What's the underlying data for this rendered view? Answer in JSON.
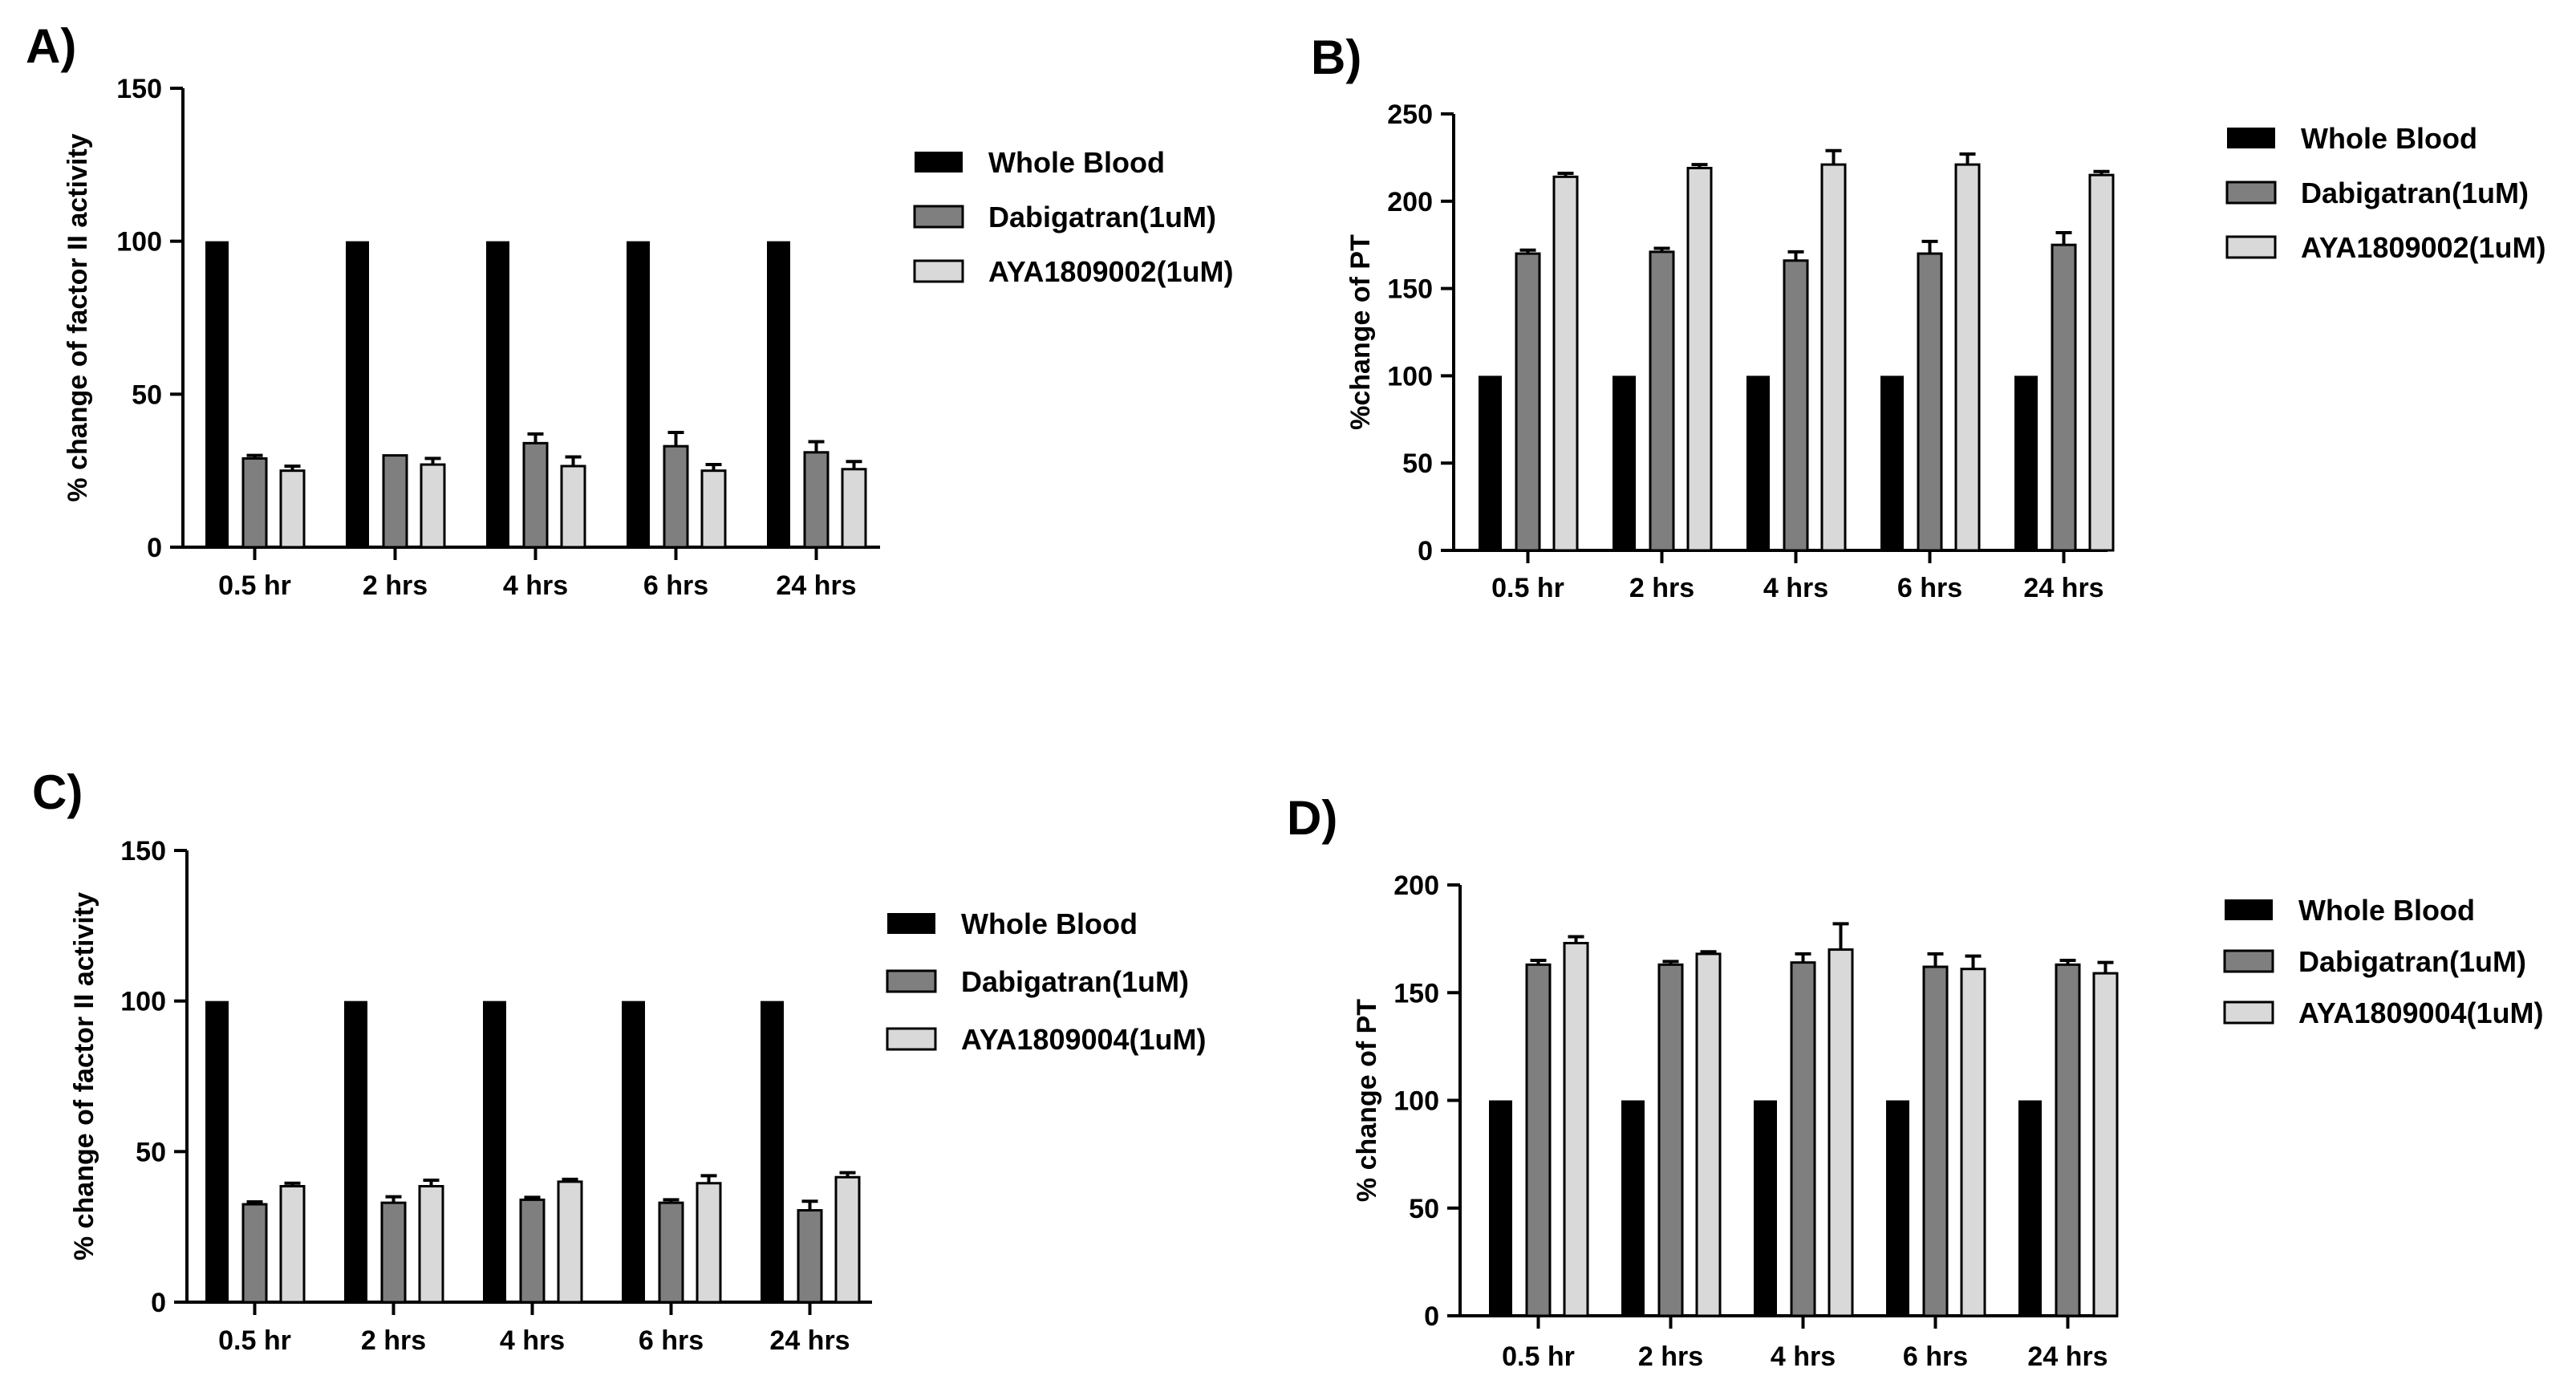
{
  "colors": {
    "whole_blood": "#000000",
    "dabigatran": "#7f7f7f",
    "aya": "#d9d9d9",
    "axis": "#000000"
  },
  "chart_data": [
    {
      "panel": "A)",
      "type": "bar",
      "ylabel": "% change of factor II activity",
      "ylim": [
        0,
        150
      ],
      "yticks": [
        0,
        50,
        100,
        150
      ],
      "categories": [
        "0.5 hr",
        "2 hrs",
        "4 hrs",
        "6 hrs",
        "24 hrs"
      ],
      "series": [
        {
          "name": "Whole Blood",
          "values": [
            100,
            100,
            100,
            100,
            100
          ],
          "errors": [
            0,
            0,
            0,
            0,
            0
          ]
        },
        {
          "name": "Dabigatran(1uM)",
          "values": [
            29,
            30,
            34,
            33,
            31
          ],
          "errors": [
            1,
            0,
            3,
            4.5,
            3.5
          ]
        },
        {
          "name": "AYA1809002(1uM)",
          "values": [
            25,
            27,
            26.5,
            25,
            25.5
          ],
          "errors": [
            1.5,
            2,
            3,
            2,
            2.5
          ]
        }
      ],
      "legend_position": "right"
    },
    {
      "panel": "B)",
      "type": "bar",
      "ylabel": "%change of PT",
      "ylim": [
        0,
        250
      ],
      "yticks": [
        0,
        50,
        100,
        150,
        200,
        250
      ],
      "categories": [
        "0.5 hr",
        "2 hrs",
        "4 hrs",
        "6 hrs",
        "24 hrs"
      ],
      "series": [
        {
          "name": "Whole Blood",
          "values": [
            100,
            100,
            100,
            100,
            100
          ],
          "errors": [
            0,
            0,
            0,
            0,
            0
          ]
        },
        {
          "name": "Dabigatran(1uM)",
          "values": [
            170,
            171,
            166,
            170,
            175
          ],
          "errors": [
            2,
            2,
            5,
            7,
            7
          ]
        },
        {
          "name": "AYA1809002(1uM)",
          "values": [
            214,
            219,
            221,
            221,
            215
          ],
          "errors": [
            2,
            2,
            8,
            6,
            2
          ]
        }
      ],
      "legend_position": "right"
    },
    {
      "panel": "C)",
      "type": "bar",
      "ylabel": "% change of factor II activity",
      "ylim": [
        0,
        150
      ],
      "yticks": [
        0,
        50,
        100,
        150
      ],
      "categories": [
        "0.5 hr",
        "2 hrs",
        "4 hrs",
        "6 hrs",
        "24 hrs"
      ],
      "series": [
        {
          "name": "Whole Blood",
          "values": [
            100,
            100,
            100,
            100,
            100
          ],
          "errors": [
            0,
            0,
            0,
            0,
            0
          ]
        },
        {
          "name": "Dabigatran(1uM)",
          "values": [
            32.5,
            33,
            34,
            33,
            30.5
          ],
          "errors": [
            0.8,
            2,
            0.8,
            1,
            3
          ]
        },
        {
          "name": "AYA1809004(1uM)",
          "values": [
            38.5,
            38.5,
            40,
            39.5,
            41.5
          ],
          "errors": [
            1,
            2,
            0.8,
            2.5,
            1.5
          ]
        }
      ],
      "legend_position": "right"
    },
    {
      "panel": "D)",
      "type": "bar",
      "ylabel": "% change of PT",
      "ylim": [
        0,
        200
      ],
      "yticks": [
        0,
        50,
        100,
        150,
        200
      ],
      "categories": [
        "0.5 hr",
        "2 hrs",
        "4 hrs",
        "6 hrs",
        "24 hrs"
      ],
      "series": [
        {
          "name": "Whole Blood",
          "values": [
            100,
            100,
            100,
            100,
            100
          ],
          "errors": [
            0,
            0,
            0,
            0,
            0
          ]
        },
        {
          "name": "Dabigatran(1uM)",
          "values": [
            163,
            163,
            164,
            162,
            163
          ],
          "errors": [
            2,
            1.5,
            4,
            6,
            2
          ]
        },
        {
          "name": "AYA1809004(1uM)",
          "values": [
            173,
            168,
            170,
            161,
            159
          ],
          "errors": [
            3,
            1,
            12,
            6,
            5
          ]
        }
      ],
      "legend_position": "right"
    }
  ]
}
